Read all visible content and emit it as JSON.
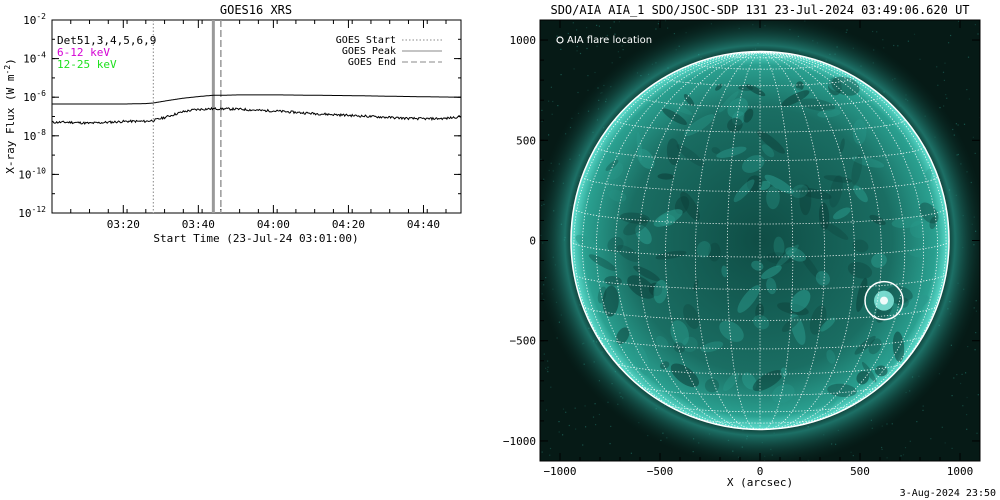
{
  "chart_data": [
    {
      "type": "line",
      "title": "GOES16 XRS",
      "xlabel": "Start Time (23-Jul-24 03:01:00)",
      "ylabel": "X-ray Flux (W m",
      "ylabel_sup": "-2",
      "ylabel_end": ")",
      "y_log": true,
      "y_exponent_range": [
        -12,
        -2
      ],
      "y_tick_base": "10",
      "y_tick_exponents": [
        "-2",
        "-4",
        "-6",
        "-8",
        "-10",
        "-12"
      ],
      "x_range_minutes": [
        0,
        109
      ],
      "x_tick_labels": [
        "03:20",
        "03:40",
        "04:00",
        "04:20",
        "04:40"
      ],
      "x_tick_minutes": [
        19,
        39,
        59,
        79,
        99
      ],
      "legend_left": [
        {
          "label": "Det51,3,4,5,6,9",
          "color": "#000000"
        },
        {
          "label": "6-12 keV",
          "color": "#d400d4"
        },
        {
          "label": "12-25 keV",
          "color": "#1ee01e"
        }
      ],
      "legend_right": [
        {
          "label": "GOES Start",
          "style": "dotted",
          "color": "#888888"
        },
        {
          "label": "GOES Peak",
          "style": "solid",
          "color": "#888888"
        },
        {
          "label": "GOES End",
          "style": "dashed",
          "color": "#888888"
        }
      ],
      "markers_minutes": {
        "start": 27,
        "peak": 43,
        "end": 45
      },
      "series": [
        {
          "color": "#000000",
          "x": [
            0,
            10,
            20,
            25,
            27,
            30,
            35,
            40,
            43,
            45,
            50,
            60,
            70,
            80,
            90,
            100,
            109
          ],
          "y_exp": [
            -6.35,
            -6.35,
            -6.35,
            -6.33,
            -6.3,
            -6.2,
            -6.05,
            -5.95,
            -5.9,
            -5.9,
            -5.88,
            -5.88,
            -5.9,
            -5.92,
            -5.95,
            -5.98,
            -6.0
          ]
        },
        {
          "color": "#000000",
          "x": [
            0,
            5,
            10,
            15,
            20,
            25,
            27,
            30,
            35,
            38,
            40,
            43,
            45,
            50,
            55,
            60,
            70,
            80,
            90,
            95,
            100,
            105,
            109
          ],
          "y_exp": [
            -7.3,
            -7.3,
            -7.35,
            -7.3,
            -7.25,
            -7.25,
            -7.2,
            -7.05,
            -6.75,
            -6.65,
            -6.62,
            -6.6,
            -6.6,
            -6.62,
            -6.68,
            -6.72,
            -6.85,
            -6.95,
            -7.05,
            -7.1,
            -7.12,
            -7.1,
            -7.0
          ]
        }
      ]
    },
    {
      "type": "scatter",
      "title": "SDO/AIA AIA_1 SDO/JSOC-SDP 131 23-Jul-2024 03:49:06.620 UT",
      "xlabel": "X (arcsec)",
      "xlim": [
        -1100,
        1100
      ],
      "ylim": [
        -1100,
        1100
      ],
      "x_ticks": [
        -1000,
        -500,
        0,
        500,
        1000
      ],
      "x_tick_labels": [
        "−1000",
        "−500",
        "0",
        "500",
        "1000"
      ],
      "y_ticks": [
        1000,
        500,
        0,
        -500,
        -1000
      ],
      "y_tick_labels": [
        "1000",
        "500",
        "0",
        "−500",
        "−1000"
      ],
      "solar_radius_arcsec": 945,
      "grid": true,
      "legend_label": "AIA flare location",
      "flare_location": {
        "x": 620,
        "y": -300,
        "radius": 95
      },
      "disk_color": "#2fb7a8",
      "background": "#061a16"
    }
  ],
  "footer": {
    "timestamp": "3-Aug-2024 23:50"
  }
}
